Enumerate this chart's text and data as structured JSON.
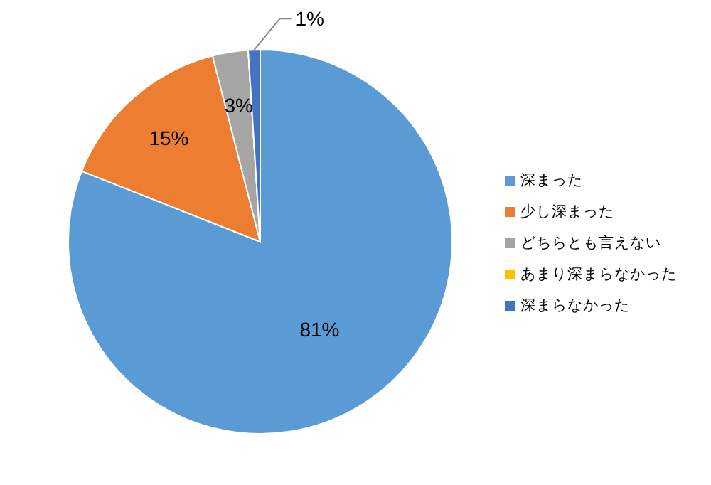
{
  "chart_data": {
    "type": "pie",
    "categories": [
      "深まった",
      "少し深まった",
      "どちらとも言えない",
      "あまり深まらなかった",
      "深まらなかった"
    ],
    "values": [
      81,
      15,
      3,
      0,
      1
    ],
    "colors": [
      "#5b9bd5",
      "#ed7d31",
      "#a5a5a5",
      "#ffc000",
      "#4472c4"
    ],
    "value_labels": [
      "81%",
      "15%",
      "3%",
      null,
      "1%"
    ],
    "legend": "right"
  }
}
